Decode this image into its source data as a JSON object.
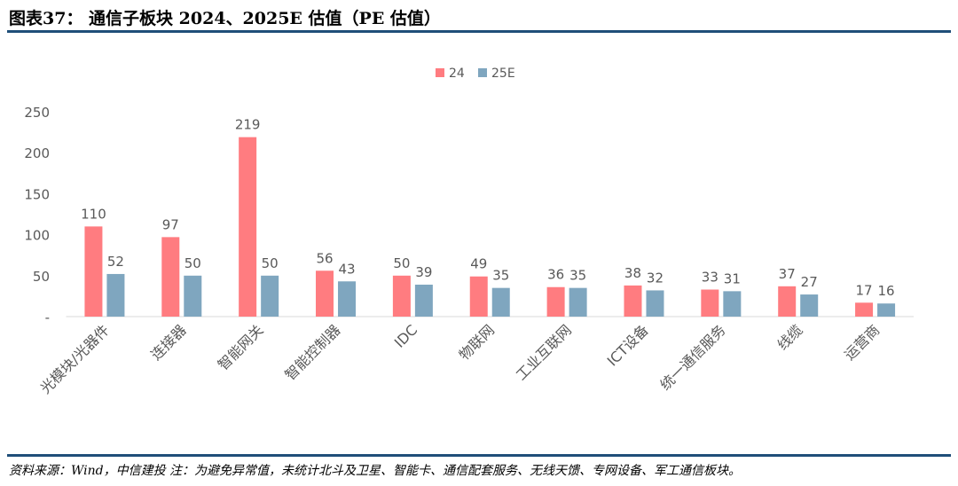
{
  "title": "图表37： 通信子板块 2024、2025E 估值（PE 估值）",
  "source": "资料来源：Wind，中信建投 注：为避免异常值，未统计北斗及卫星、智能卡、通信配套服务、无线天馈、专网设备、军工通信板块。",
  "chart_data": {
    "type": "bar",
    "title": "",
    "xlabel": "",
    "ylabel": "",
    "ylim": [
      0,
      250
    ],
    "yticks": [
      0,
      50,
      100,
      150,
      200,
      250
    ],
    "ytick_labels": [
      "-",
      "50",
      "100",
      "150",
      "200",
      "250"
    ],
    "grid": false,
    "legend_position": "top-center",
    "categories": [
      "光模块/光器件",
      "连接器",
      "智能网关",
      "智能控制器",
      "IDC",
      "物联网",
      "工业互联网",
      "ICT设备",
      "统一通信服务",
      "线缆",
      "运营商"
    ],
    "series": [
      {
        "name": "24",
        "color": "#ff7c80",
        "values": [
          110,
          97,
          219,
          56,
          50,
          49,
          36,
          38,
          33,
          37,
          17
        ]
      },
      {
        "name": "25E",
        "color": "#7fa6bf",
        "values": [
          52,
          50,
          50,
          43,
          39,
          35,
          35,
          32,
          31,
          27,
          16
        ]
      }
    ]
  }
}
